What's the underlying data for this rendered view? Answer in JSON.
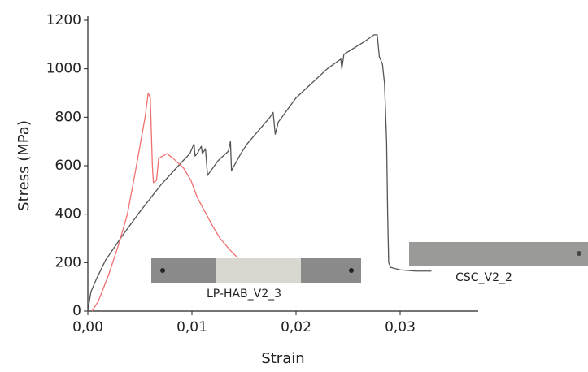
{
  "chart_data": {
    "type": "line",
    "x_label": "Strain",
    "y_label": "Stress (MPa)",
    "xlim": [
      0,
      0.0375
    ],
    "ylim": [
      0,
      1200
    ],
    "xticks": [
      {
        "value": 0,
        "label": "0,00"
      },
      {
        "value": 0.01,
        "label": "0,01"
      },
      {
        "value": 0.02,
        "label": "0,02"
      },
      {
        "value": 0.03,
        "label": "0,03"
      }
    ],
    "yticks": [
      0,
      200,
      400,
      600,
      800,
      1000,
      1200
    ],
    "grid": false,
    "series": [
      {
        "name": "CSC_V2_2",
        "color": "#555555",
        "x": [
          0,
          0.0003,
          0.0008,
          0.0017,
          0.0033,
          0.005,
          0.007,
          0.0087,
          0.0098,
          0.0102,
          0.0103,
          0.0105,
          0.0109,
          0.011,
          0.0113,
          0.0115,
          0.0125,
          0.0135,
          0.0137,
          0.0138,
          0.0147,
          0.0153,
          0.0175,
          0.0178,
          0.018,
          0.0183,
          0.02,
          0.023,
          0.0243,
          0.0244,
          0.0246,
          0.0265,
          0.0275,
          0.0278,
          0.028,
          0.0283,
          0.0285,
          0.0287,
          0.0288,
          0.0289,
          0.0291,
          0.03,
          0.0315,
          0.033
        ],
        "values": [
          0,
          80,
          130,
          210,
          310,
          410,
          520,
          600,
          650,
          690,
          640,
          650,
          680,
          650,
          670,
          560,
          620,
          660,
          700,
          580,
          650,
          690,
          800,
          820,
          730,
          780,
          880,
          1000,
          1040,
          1000,
          1060,
          1110,
          1140,
          1140,
          1050,
          1020,
          940,
          700,
          400,
          200,
          180,
          170,
          165,
          165
        ]
      },
      {
        "name": "LP-HAB_V2_3",
        "color": "#f07070",
        "x": [
          0.0004,
          0.001,
          0.002,
          0.003,
          0.0038,
          0.0045,
          0.005,
          0.0055,
          0.0058,
          0.006,
          0.0062,
          0.0063,
          0.0066,
          0.0068,
          0.0072,
          0.0076,
          0.0082,
          0.0092,
          0.0099,
          0.0105,
          0.011,
          0.012,
          0.0127,
          0.0137,
          0.0144
        ],
        "values": [
          0,
          40,
          150,
          280,
          400,
          560,
          680,
          800,
          900,
          880,
          600,
          530,
          540,
          630,
          640,
          650,
          630,
          590,
          540,
          470,
          430,
          350,
          300,
          250,
          220
        ]
      }
    ]
  }
}
